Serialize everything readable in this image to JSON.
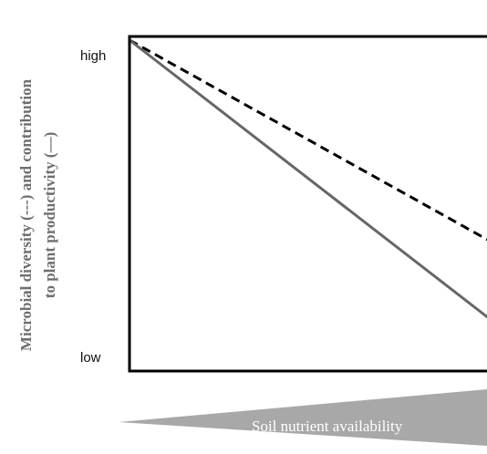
{
  "chart_data": {
    "type": "line",
    "ylabel_line1": "Microbial diversity (---) and contribution",
    "ylabel_line2": "to plant productivity (—)",
    "y_ticks": [
      "high",
      "low"
    ],
    "x": [
      0,
      1
    ],
    "xlim": [
      0,
      1
    ],
    "ylim": [
      0,
      1
    ],
    "series": [
      {
        "style": "dashed",
        "color": "#000000",
        "values": [
          1.0,
          0.33
        ]
      },
      {
        "style": "solid",
        "color": "#666666",
        "values": [
          1.0,
          0.07
        ]
      }
    ],
    "x_indicator": {
      "label": "Soil nutrient availability",
      "shape": "wedge",
      "direction": "increasing",
      "color": "#a8a8a8"
    },
    "grid": false
  }
}
